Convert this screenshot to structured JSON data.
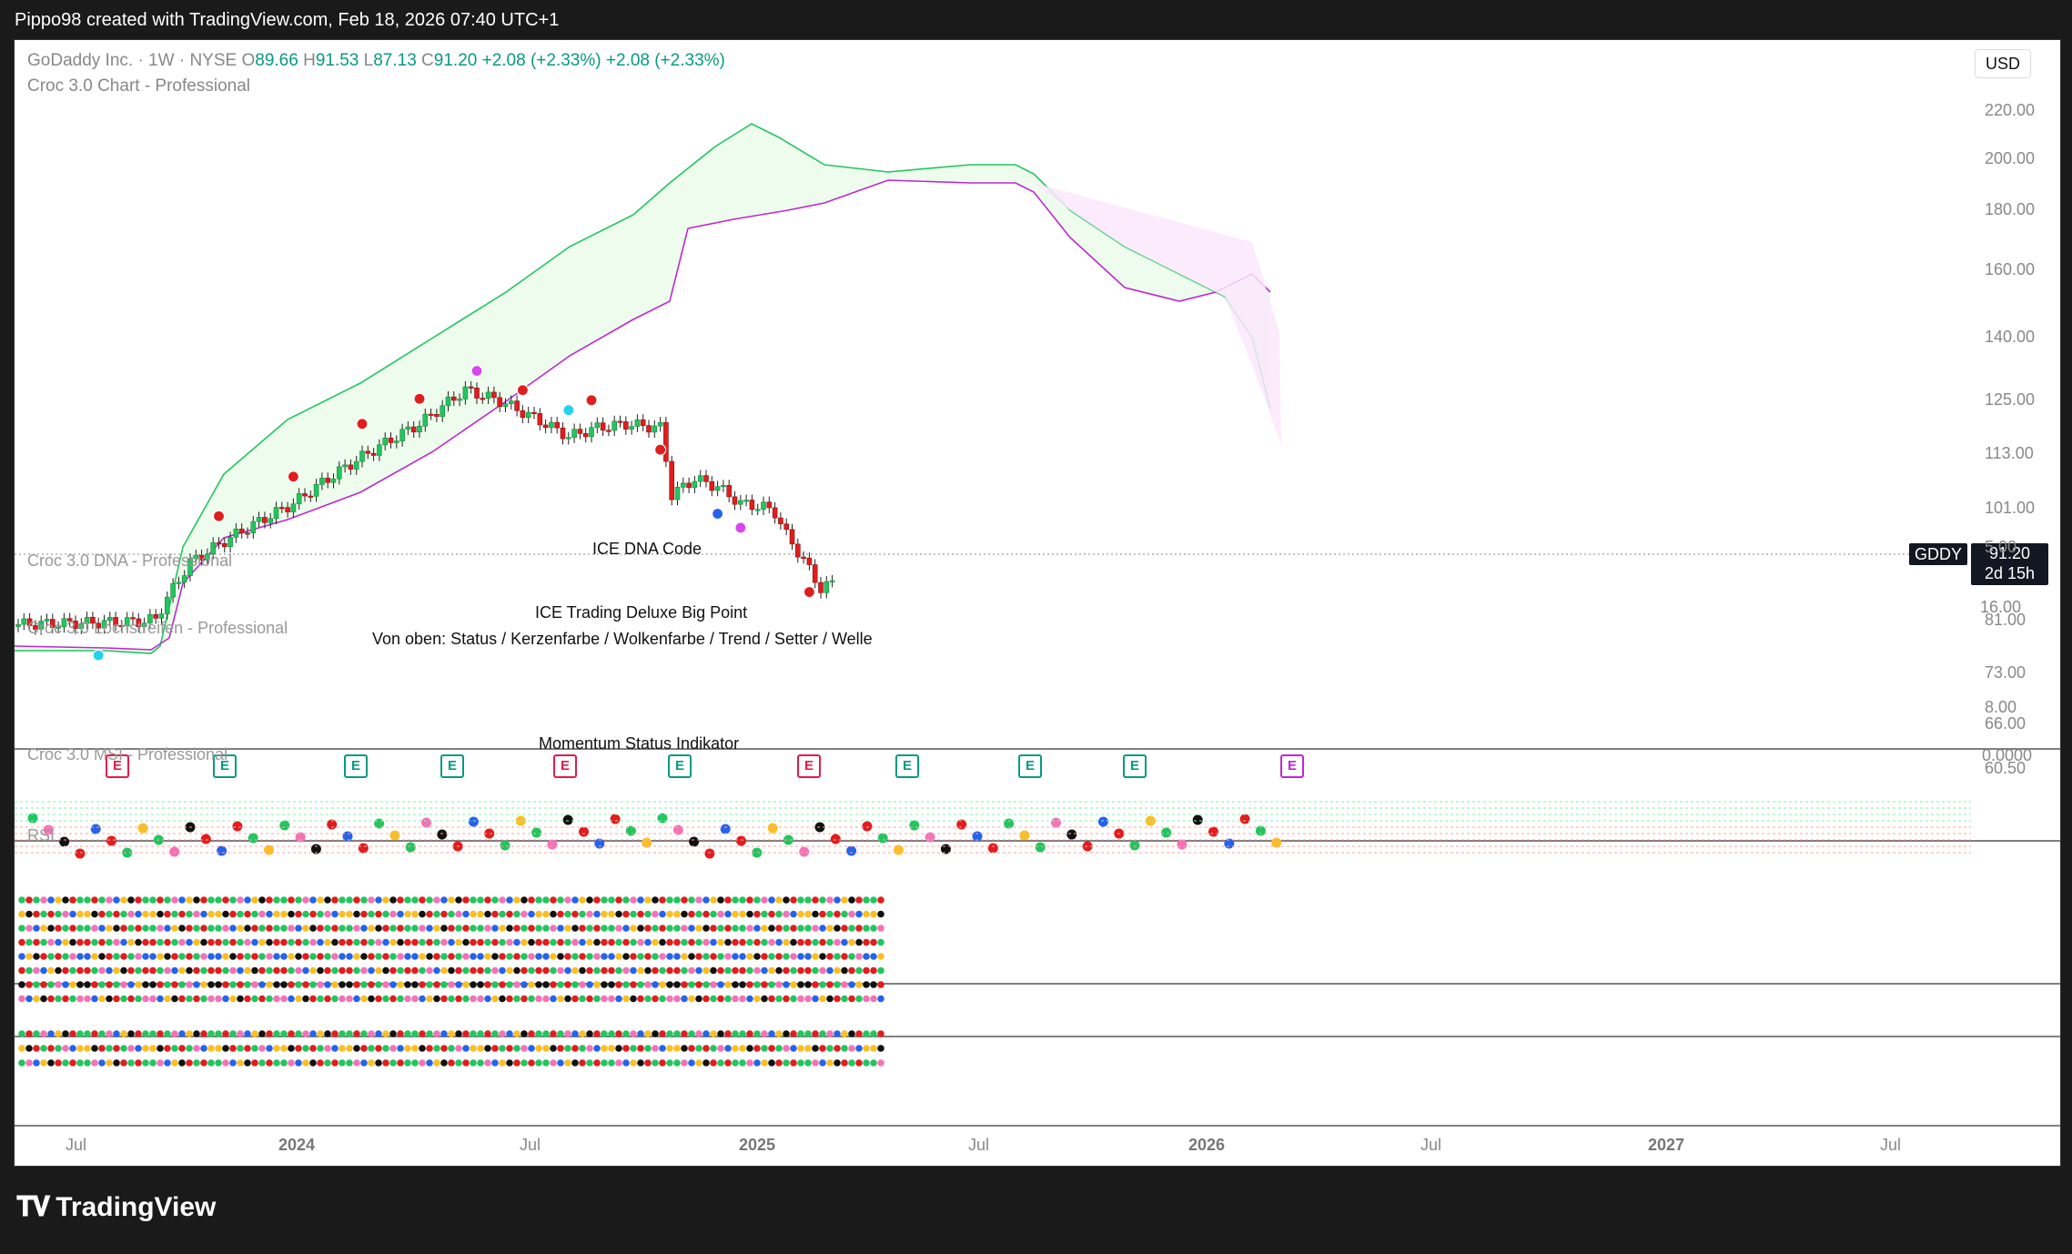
{
  "header": {
    "attribution": "Pippo98 created with TradingView.com, Feb 18, 2026 07:40 UTC+1"
  },
  "legend": {
    "symbol_line": "GoDaddy Inc. · 1W · NYSE",
    "o_label": "O",
    "o": "89.66",
    "h_label": "H",
    "h": "91.53",
    "l_label": "L",
    "l": "87.13",
    "c_label": "C",
    "c": "91.20",
    "change": "+2.08 (+2.33%)",
    "change2": "+2.08 (+2.33%)",
    "indicator": "Croc 3.0 Chart - Professional"
  },
  "currency": "USD",
  "last_price": {
    "ticker": "GDDY",
    "price": "91.20",
    "countdown": "2d 15h"
  },
  "price_axis": [
    "220.00",
    "200.00",
    "180.00",
    "160.00",
    "140.00",
    "125.00",
    "113.00",
    "101.00",
    "81.00",
    "73.00",
    "66.00",
    "60.50"
  ],
  "time_axis": [
    {
      "label": "Jul",
      "bold": false
    },
    {
      "label": "2024",
      "bold": true
    },
    {
      "label": "Jul",
      "bold": false
    },
    {
      "label": "2025",
      "bold": true
    },
    {
      "label": "Jul",
      "bold": false
    },
    {
      "label": "2026",
      "bold": true
    },
    {
      "label": "Jul",
      "bold": false
    },
    {
      "label": "2027",
      "bold": true
    },
    {
      "label": "Jul",
      "bold": false
    }
  ],
  "panes": {
    "dna": {
      "label": "Croc 3.0 DNA - Professional",
      "title": "ICE DNA Code",
      "axis_top": "5.00",
      "axis_bottom": "16.00"
    },
    "trading": {
      "label": "Croc 3.0 Lochstreifen - Professional",
      "title": "ICE Trading Deluxe Big Point",
      "subtitle": "Von oben: Status / Kerzenfarbe / Wolkenfarbe / Trend / Setter / Welle",
      "axis": "8.00"
    },
    "momentum": {
      "label": "Croc 3.0 MSI - Professional",
      "title": "Momentum Status Indikator",
      "axis": "0.0000"
    },
    "rsi": {
      "label": "RSI"
    }
  },
  "earnings_marker": "E",
  "colors": {
    "up": "#22c55e",
    "down": "#e11d1d",
    "cloud_upper": "#c026d3",
    "cloud_lower": "#22c55e",
    "accent": "#089981"
  },
  "footer": {
    "brand": "TradingView"
  }
}
